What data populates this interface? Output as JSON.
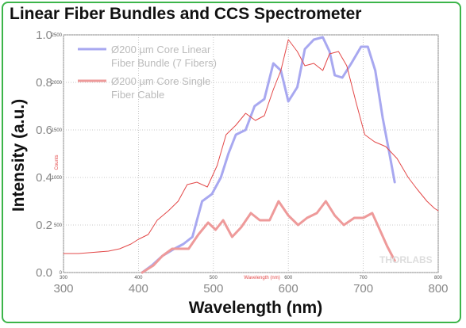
{
  "chart_data": {
    "type": "line",
    "title": "Linear Fiber Bundles and CCS Spectrometer",
    "xlabel": "Wavelength (nm)",
    "ylabel": "Intensity (a.u.)",
    "xlim": [
      300,
      800
    ],
    "ylim": [
      0,
      1.0
    ],
    "x_ticks": [
      "300",
      "400",
      "500",
      "600",
      "700",
      "800"
    ],
    "y_ticks": [
      "0.0",
      "0.2",
      "0.4",
      "0.6",
      "0.8",
      "1.0"
    ],
    "inner_x_ticks": [
      "300",
      "400",
      "500",
      "600",
      "700",
      "800"
    ],
    "inner_y_ticks": [
      "0",
      "500",
      "1000",
      "1500",
      "2000",
      "2500"
    ],
    "inner_xlabel": "Wavelength (nm)",
    "inner_ylabel": "Counts",
    "watermark": "THORLABS",
    "grid": true,
    "legend_position": "top-left",
    "series": [
      {
        "name": "Ø200 µm Core Linear Fiber Bundle (7 Fibers)",
        "color": "#a8a8f0",
        "x": [
          405,
          418,
          432,
          448,
          460,
          472,
          485,
          498,
          510,
          520,
          530,
          543,
          555,
          568,
          580,
          590,
          600,
          612,
          622,
          634,
          646,
          655,
          662,
          672,
          684,
          697,
          706,
          716,
          726,
          735,
          742
        ],
        "y": [
          0.0,
          0.03,
          0.07,
          0.1,
          0.12,
          0.15,
          0.3,
          0.33,
          0.4,
          0.5,
          0.58,
          0.6,
          0.7,
          0.73,
          0.88,
          0.85,
          0.72,
          0.78,
          0.94,
          0.98,
          0.99,
          0.93,
          0.83,
          0.82,
          0.88,
          0.95,
          0.95,
          0.85,
          0.65,
          0.5,
          0.38
        ]
      },
      {
        "name": "Ø200 µm Core Single Fiber Cable",
        "color": "#ee9a9a",
        "x": [
          405,
          420,
          432,
          445,
          455,
          467,
          480,
          493,
          503,
          513,
          525,
          537,
          550,
          562,
          575,
          587,
          600,
          613,
          625,
          638,
          650,
          662,
          674,
          688,
          700,
          712,
          722,
          732,
          742
        ],
        "y": [
          0.0,
          0.03,
          0.07,
          0.1,
          0.1,
          0.1,
          0.16,
          0.21,
          0.18,
          0.22,
          0.15,
          0.19,
          0.25,
          0.22,
          0.22,
          0.3,
          0.24,
          0.2,
          0.23,
          0.25,
          0.3,
          0.24,
          0.2,
          0.23,
          0.23,
          0.25,
          0.18,
          0.11,
          0.05
        ]
      },
      {
        "name": "",
        "color": "#e34848",
        "x": [
          300,
          320,
          340,
          360,
          375,
          390,
          400,
          413,
          425,
          440,
          453,
          465,
          478,
          492,
          505,
          517,
          530,
          543,
          556,
          568,
          580,
          590,
          600,
          612,
          622,
          634,
          646,
          655,
          667,
          678,
          690,
          702,
          715,
          730,
          745,
          760,
          772,
          785,
          795,
          800
        ],
        "y": [
          0.08,
          0.08,
          0.085,
          0.09,
          0.1,
          0.12,
          0.14,
          0.16,
          0.22,
          0.26,
          0.3,
          0.37,
          0.38,
          0.36,
          0.45,
          0.58,
          0.62,
          0.67,
          0.64,
          0.66,
          0.77,
          0.85,
          0.98,
          0.93,
          0.87,
          0.88,
          0.85,
          0.92,
          0.93,
          0.87,
          0.72,
          0.58,
          0.55,
          0.53,
          0.48,
          0.4,
          0.35,
          0.3,
          0.27,
          0.26
        ]
      }
    ]
  }
}
